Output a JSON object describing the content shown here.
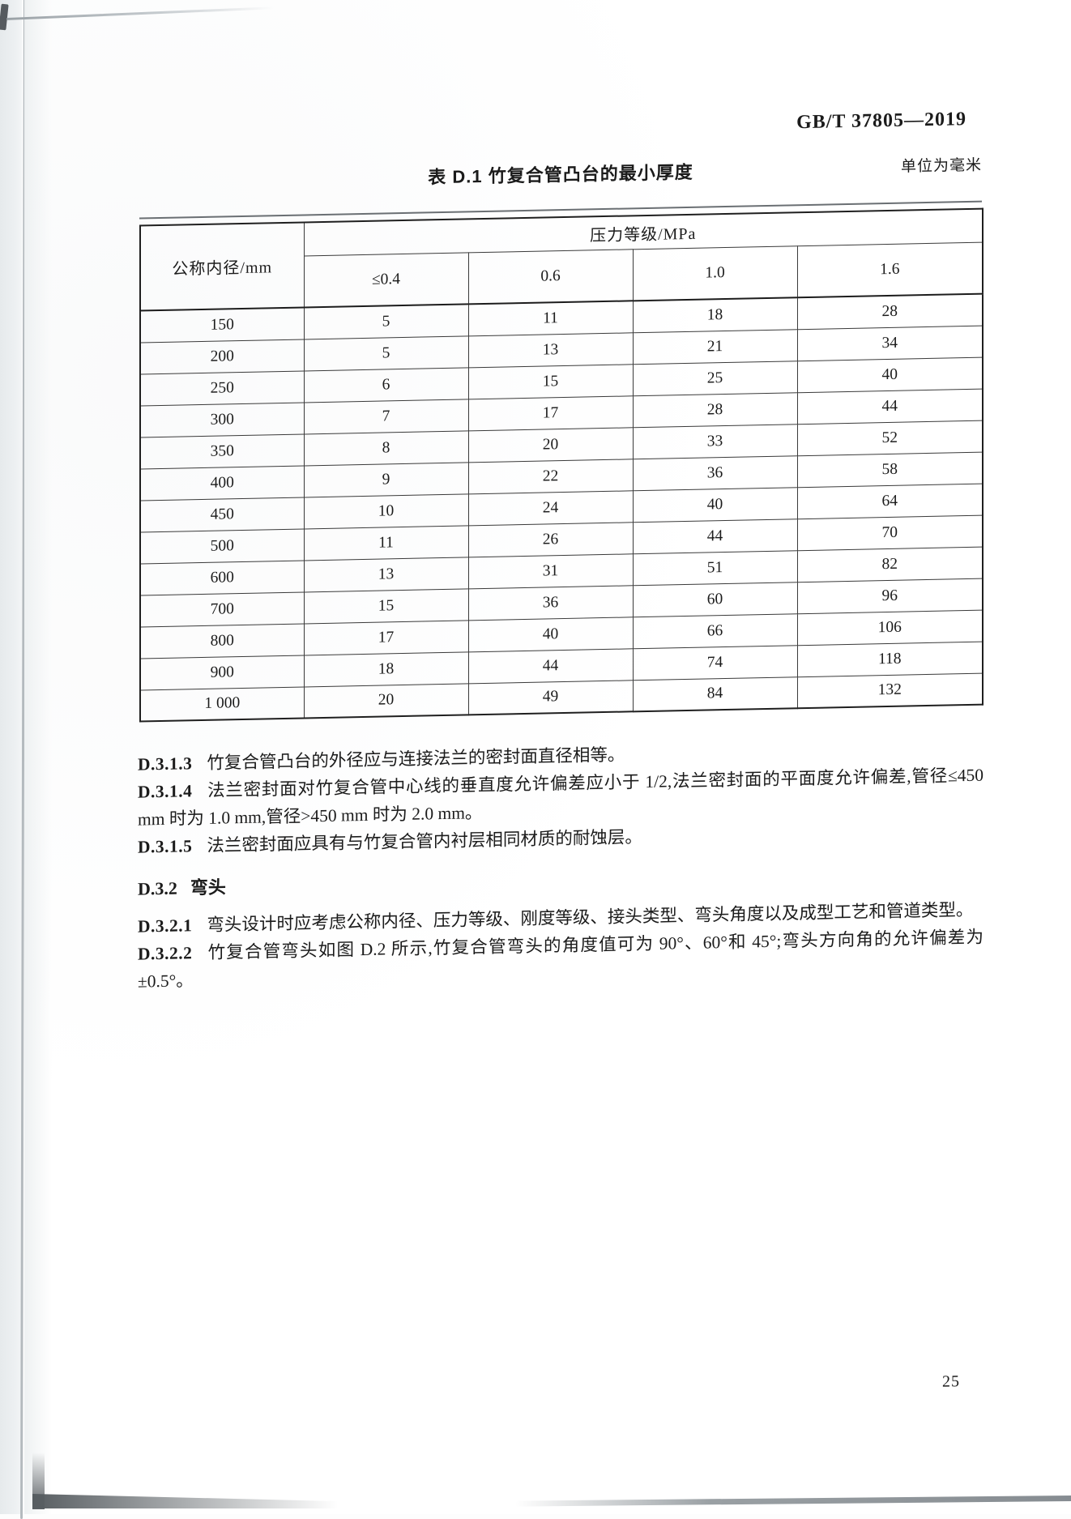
{
  "page": {
    "doc_number": "GB/T 37805—2019",
    "page_number": "25",
    "ink_color": "#1b1b1b",
    "paper_color": "#ffffff",
    "scan_edge_color": "#b4babe"
  },
  "table": {
    "title": "表 D.1  竹复合管凸台的最小厚度",
    "unit_note": "单位为毫米",
    "col0_header": "公称内径/mm",
    "group_header": "压力等级/MPa",
    "pressure_headers": [
      "≤0.4",
      "0.6",
      "1.0",
      "1.6"
    ],
    "rows": [
      {
        "dn": "150",
        "values": [
          "5",
          "11",
          "18",
          "28"
        ]
      },
      {
        "dn": "200",
        "values": [
          "5",
          "13",
          "21",
          "34"
        ]
      },
      {
        "dn": "250",
        "values": [
          "6",
          "15",
          "25",
          "40"
        ]
      },
      {
        "dn": "300",
        "values": [
          "7",
          "17",
          "28",
          "44"
        ]
      },
      {
        "dn": "350",
        "values": [
          "8",
          "20",
          "33",
          "52"
        ]
      },
      {
        "dn": "400",
        "values": [
          "9",
          "22",
          "36",
          "58"
        ]
      },
      {
        "dn": "450",
        "values": [
          "10",
          "24",
          "40",
          "64"
        ]
      },
      {
        "dn": "500",
        "values": [
          "11",
          "26",
          "44",
          "70"
        ]
      },
      {
        "dn": "600",
        "values": [
          "13",
          "31",
          "51",
          "82"
        ]
      },
      {
        "dn": "700",
        "values": [
          "15",
          "36",
          "60",
          "96"
        ]
      },
      {
        "dn": "800",
        "values": [
          "17",
          "40",
          "66",
          "106"
        ]
      },
      {
        "dn": "900",
        "values": [
          "18",
          "44",
          "74",
          "118"
        ]
      },
      {
        "dn": "1 000",
        "values": [
          "20",
          "49",
          "84",
          "132"
        ]
      }
    ]
  },
  "paragraphs": [
    {
      "label": "D.3.1.3",
      "text": "竹复合管凸台的外径应与连接法兰的密封面直径相等。"
    },
    {
      "label": "D.3.1.4",
      "text": "法兰密封面对竹复合管中心线的垂直度允许偏差应小于 1/2,法兰密封面的平面度允许偏差,管径≤450 mm 时为 1.0 mm,管径>450 mm 时为 2.0 mm。"
    },
    {
      "label": "D.3.1.5",
      "text": "法兰密封面应具有与竹复合管内衬层相同材质的耐蚀层。"
    }
  ],
  "section": {
    "label": "D.3.2",
    "title": "弯头"
  },
  "paragraphs2": [
    {
      "label": "D.3.2.1",
      "text": "弯头设计时应考虑公称内径、压力等级、刚度等级、接头类型、弯头角度以及成型工艺和管道类型。"
    },
    {
      "label": "D.3.2.2",
      "text": "竹复合管弯头如图 D.2 所示,竹复合管弯头的角度值可为 90°、60°和 45°;弯头方向角的允许偏差为±0.5°。"
    }
  ]
}
